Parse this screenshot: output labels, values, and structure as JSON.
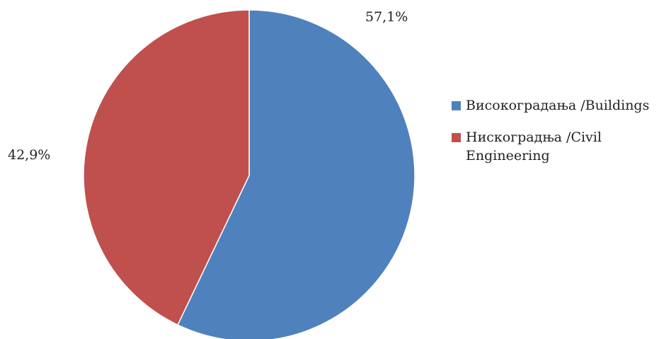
{
  "chart_data": {
    "type": "pie",
    "title": "",
    "series": [
      {
        "values": [
          57.1,
          42.9
        ]
      }
    ],
    "categories": [
      "Високоградања /Buildings",
      "Нискоградња /Civil Engineering"
    ],
    "data_labels": [
      "57,1%",
      "42,9%"
    ],
    "colors": [
      "#4f81bd",
      "#c0504d"
    ],
    "start_angle_deg": 0,
    "direction": "clockwise",
    "legend_position": "right"
  }
}
